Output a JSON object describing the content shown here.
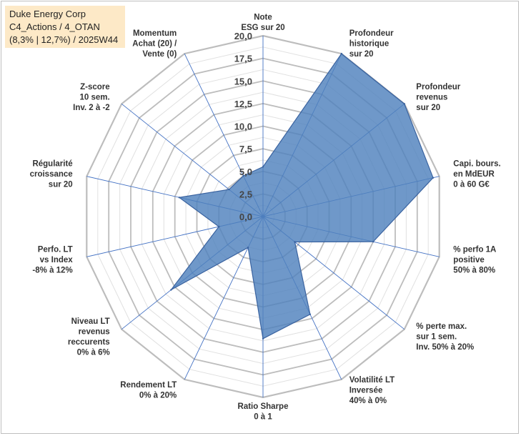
{
  "title": {
    "line1": "Duke Energy Corp",
    "line2": "C4_Actions / 4_OTAN",
    "line3": "(8,3% | 12,7%) / 2025W44"
  },
  "chart_data": {
    "type": "radar",
    "range": [
      0,
      20
    ],
    "tick_labels": [
      "0,0",
      "2,5",
      "5,0",
      "7,5",
      "10,0",
      "12,5",
      "15,0",
      "17,5",
      "20,0"
    ],
    "axes": [
      {
        "label": [
          "Note",
          "ESG sur 20"
        ],
        "value": 5.5
      },
      {
        "label": [
          "Profondeur",
          "historique",
          "sur 20"
        ],
        "value": 20.0
      },
      {
        "label": [
          "Profondeur",
          "revenus",
          "sur 20"
        ],
        "value": 20.0
      },
      {
        "label": [
          "Capi. bours.",
          "en MdEUR",
          "0 à 60 G€"
        ],
        "value": 19.3
      },
      {
        "label": [
          "% perfo 1A",
          "positive",
          "50% à 80%"
        ],
        "value": 12.5
      },
      {
        "label": [
          "% perte max.",
          "sur 1 sem.",
          "Inv. 50% à 20%"
        ],
        "value": 4.5
      },
      {
        "label": [
          "Volatilité LT",
          "Inversée",
          "40% à 0%"
        ],
        "value": 12.0
      },
      {
        "label": [
          "Ratio Sharpe",
          "0 à 1"
        ],
        "value": 13.5
      },
      {
        "label": [
          "Rendement LT",
          "0% à 20%"
        ],
        "value": 3.8
      },
      {
        "label": [
          "Niveau LT",
          "revenus",
          "reccurents",
          "0% à 6%"
        ],
        "value": 13.0
      },
      {
        "label": [
          "Perfo. LT",
          "vs Index",
          "-8% à 12%"
        ],
        "value": 5.0
      },
      {
        "label": [
          "Régularité",
          "croissance",
          "sur 20"
        ],
        "value": 9.5
      },
      {
        "label": [
          "Z-score",
          "10 sem.",
          "Inv. 2 à -2"
        ],
        "value": 4.8
      },
      {
        "label": [
          "Momentum",
          "Achat (20) /",
          "Vente (0)"
        ],
        "value": 5.0
      }
    ],
    "colors": {
      "fill": "#4f81bd",
      "stroke": "#3a63a0",
      "spoke": "#4472c4",
      "grid": "#c8c8c8",
      "title_bg": "#fde9c7"
    }
  }
}
